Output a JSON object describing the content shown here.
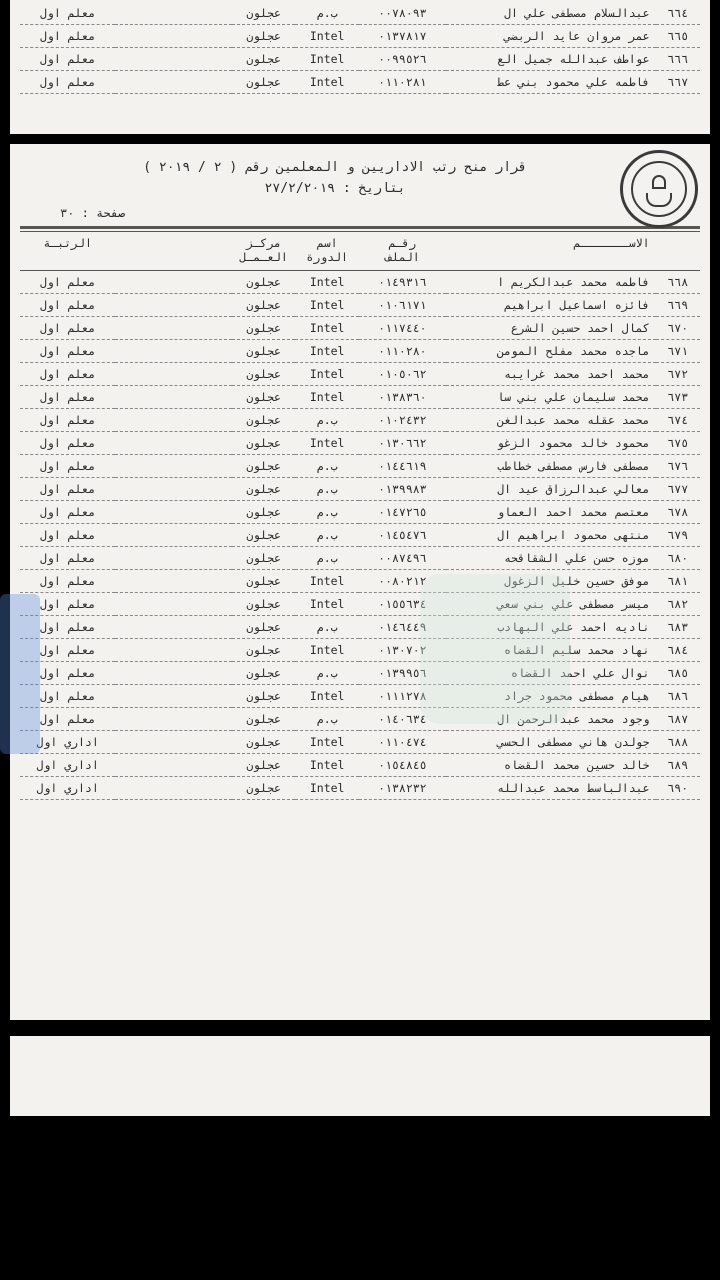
{
  "header": {
    "title_line1": "قرار منح رتب الاداريين و المعلمين رقم ( ٢ / ٢٠١٩ )",
    "title_line2": "بتاريخ : ٢٧/٢/٢٠١٩",
    "page_label": "صفحة : ٣٠"
  },
  "columns": {
    "no": "",
    "name": "الاســـــــم",
    "file": "رقـم\nالملف",
    "course": "اسم\nالدورة",
    "center": "مركـز\nالعـمـل",
    "center2": "",
    "rank": "الرتبـة"
  },
  "top_rows": [
    {
      "no": "٦٦٤",
      "name": "عبدالسلام مصطفى علي ال",
      "file": "٠٠٧٨٠٩٣",
      "course": "ب.م",
      "center": "عجلون",
      "center2": "",
      "rank": "معلم اول"
    },
    {
      "no": "٦٦٥",
      "name": "عمر مروان عايد الربضي",
      "file": "٠١٣٧٨١٧",
      "course": "Intel",
      "center": "عجلون",
      "center2": "",
      "rank": "معلم اول"
    },
    {
      "no": "٦٦٦",
      "name": "عواطف عبدالله جميل الع",
      "file": "٠٠٩٩٥٢٦",
      "course": "Intel",
      "center": "عجلون",
      "center2": "",
      "rank": "معلم اول"
    },
    {
      "no": "٦٦٧",
      "name": "فاطمه علي محمود بني عط",
      "file": "٠١١٠٢٨١",
      "course": "Intel",
      "center": "عجلون",
      "center2": "",
      "rank": "معلم اول"
    }
  ],
  "rows": [
    {
      "no": "٦٦٨",
      "name": "فاطمه محمد عبدالكريم ا",
      "file": "٠١٤٩٣١٦",
      "course": "Intel",
      "center": "عجلون",
      "center2": "",
      "rank": "معلم اول"
    },
    {
      "no": "٦٦٩",
      "name": "فائزه اسماعيل ابراهيم",
      "file": "٠١٠٦١٧١",
      "course": "Intel",
      "center": "عجلون",
      "center2": "",
      "rank": "معلم اول"
    },
    {
      "no": "٦٧٠",
      "name": "كمال احمد حسين الشرع",
      "file": "٠١١٧٤٤٠",
      "course": "Intel",
      "center": "عجلون",
      "center2": "",
      "rank": "معلم اول"
    },
    {
      "no": "٦٧١",
      "name": "ماجده محمد مفلح المومن",
      "file": "٠١١٠٢٨٠",
      "course": "Intel",
      "center": "عجلون",
      "center2": "",
      "rank": "معلم اول"
    },
    {
      "no": "٦٧٢",
      "name": "محمد احمد محمد غرايبه",
      "file": "٠١٠٥٠٦٢",
      "course": "Intel",
      "center": "عجلون",
      "center2": "",
      "rank": "معلم اول"
    },
    {
      "no": "٦٧٣",
      "name": "محمد سليمان علي بني سا",
      "file": "٠١٣٨٣٦٠",
      "course": "Intel",
      "center": "عجلون",
      "center2": "",
      "rank": "معلم اول"
    },
    {
      "no": "٦٧٤",
      "name": "محمد عقله محمد عبدالغن",
      "file": "٠١٠٢٤٣٢",
      "course": "ب.م",
      "center": "عجلون",
      "center2": "",
      "rank": "معلم اول"
    },
    {
      "no": "٦٧٥",
      "name": "محمود خالد محمود الزغو",
      "file": "٠١٣٠٦٦٢",
      "course": "Intel",
      "center": "عجلون",
      "center2": "",
      "rank": "معلم اول"
    },
    {
      "no": "٦٧٦",
      "name": "مصطفى فارس مصطفى خطاطب",
      "file": "٠١٤٤٦١٩",
      "course": "ب.م",
      "center": "عجلون",
      "center2": "",
      "rank": "معلم اول"
    },
    {
      "no": "٦٧٧",
      "name": "معالي عبدالرزاق عيد ال",
      "file": "٠١٣٩٩٨٣",
      "course": "ب.م",
      "center": "عجلون",
      "center2": "",
      "rank": "معلم اول"
    },
    {
      "no": "٦٧٨",
      "name": "معتصم محمد احمد العماو",
      "file": "٠١٤٧٢٦٥",
      "course": "ب.م",
      "center": "عجلون",
      "center2": "",
      "rank": "معلم اول"
    },
    {
      "no": "٦٧٩",
      "name": "منتهى محمود ابراهيم ال",
      "file": "٠١٤٥٤٧٦",
      "course": "ب.م",
      "center": "عجلون",
      "center2": "",
      "rank": "معلم اول"
    },
    {
      "no": "٦٨٠",
      "name": "موزه حسن علي الشقاقحه",
      "file": "٠٠٨٧٤٩٦",
      "course": "ب.م",
      "center": "عجلون",
      "center2": "",
      "rank": "معلم اول"
    },
    {
      "no": "٦٨١",
      "name": "موفق حسين خليل الزغول",
      "file": "٠٠٨٠٢١٢",
      "course": "Intel",
      "center": "عجلون",
      "center2": "",
      "rank": "معلم اول"
    },
    {
      "no": "٦٨٢",
      "name": "ميسر مصطفى علي بني سعي",
      "file": "٠١٥٥٦٣٤",
      "course": "Intel",
      "center": "عجلون",
      "center2": "",
      "rank": "معلم اول"
    },
    {
      "no": "٦٨٣",
      "name": "ناديه احمد علي البهادب",
      "file": "٠١٤٦٤٤٩",
      "course": "ب.م",
      "center": "عجلون",
      "center2": "",
      "rank": "معلم اول"
    },
    {
      "no": "٦٨٤",
      "name": "نهاد محمد سليم القضاه",
      "file": "٠١٣٠٧٠٢",
      "course": "Intel",
      "center": "عجلون",
      "center2": "",
      "rank": "معلم اول"
    },
    {
      "no": "٦٨٥",
      "name": "نوال علي احمد القضاه",
      "file": "٠١٣٩٩٥٦",
      "course": "ب.م",
      "center": "عجلون",
      "center2": "",
      "rank": "معلم اول"
    },
    {
      "no": "٦٨٦",
      "name": "هيام مصطفى محمود جراد",
      "file": "٠١١١٢٧٨",
      "course": "Intel",
      "center": "عجلون",
      "center2": "",
      "rank": "معلم اول"
    },
    {
      "no": "٦٨٧",
      "name": "وجود محمد عبدالرحمن ال",
      "file": "٠١٤٠٦٣٤",
      "course": "ب.م",
      "center": "عجلون",
      "center2": "",
      "rank": "معلم اول"
    },
    {
      "no": "٦٨٨",
      "name": "جولدن هاني مصطفى الحسي",
      "file": "٠١١٠٤٧٤",
      "course": "Intel",
      "center": "عجلون",
      "center2": "",
      "rank": "اداري اول"
    },
    {
      "no": "٦٨٩",
      "name": "خالد حسين محمد القضاه",
      "file": "٠١٥٤٨٤٥",
      "course": "Intel",
      "center": "عجلون",
      "center2": "",
      "rank": "اداري اول"
    },
    {
      "no": "٦٩٠",
      "name": "عبدالباسط محمد عبدالله",
      "file": "٠١٣٨٢٣٢",
      "course": "Intel",
      "center": "عجلون",
      "center2": "",
      "rank": "اداري اول"
    }
  ]
}
